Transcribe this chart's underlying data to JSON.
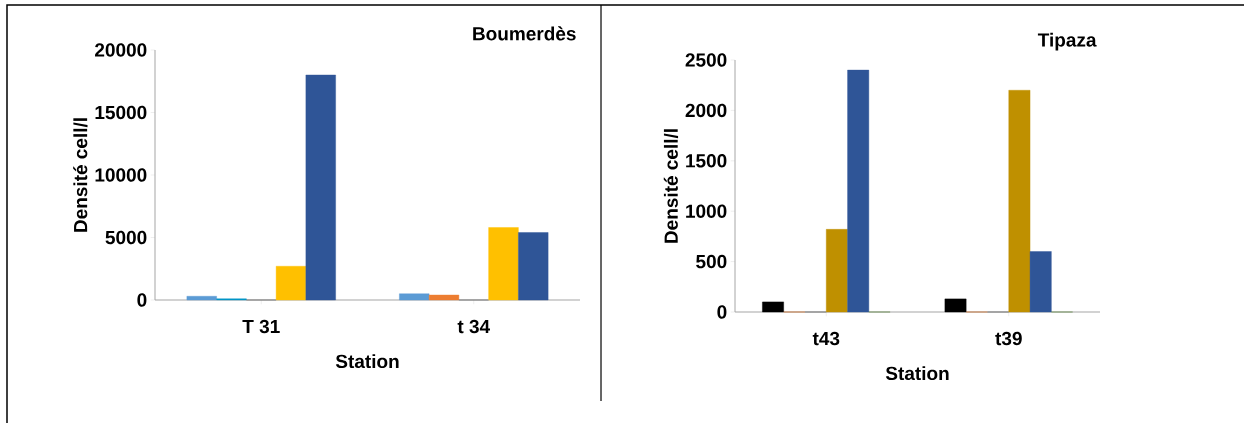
{
  "chart_data": [
    {
      "type": "bar",
      "title": "Boumerdès",
      "xlabel": "Station",
      "ylabel": "Densité cell/l",
      "categories": [
        "T 31",
        "t 34"
      ],
      "series": [
        {
          "color": "#5b9bd5",
          "values": [
            300,
            500
          ]
        },
        {
          "colors": [
            "#0095c8",
            "#ed7d31"
          ],
          "values": [
            100,
            400
          ]
        },
        {
          "color": "#595959",
          "values": [
            0,
            0
          ]
        },
        {
          "color": "#ffc000",
          "values": [
            2700,
            5800
          ]
        },
        {
          "color": "#2f5597",
          "values": [
            18000,
            5400
          ]
        }
      ],
      "ylim": [
        0,
        20000
      ],
      "yticks": [
        0,
        5000,
        10000,
        15000,
        20000
      ]
    },
    {
      "type": "bar",
      "title": "Tipaza",
      "xlabel": "Station",
      "ylabel": "Densité cell/l",
      "categories": [
        "t43",
        "t39"
      ],
      "series": [
        {
          "color": "#000000",
          "values": [
            100,
            130
          ]
        },
        {
          "color": "#c55a11",
          "values": [
            0,
            0
          ]
        },
        {
          "color": "#595959",
          "values": [
            0,
            0
          ]
        },
        {
          "color": "#bf9000",
          "values": [
            820,
            2200
          ]
        },
        {
          "color": "#2f5597",
          "values": [
            2400,
            600
          ]
        },
        {
          "color": "#548235",
          "values": [
            0,
            0
          ]
        }
      ],
      "ylim": [
        0,
        2500
      ],
      "yticks": [
        0,
        500,
        1000,
        1500,
        2000,
        2500
      ]
    }
  ]
}
